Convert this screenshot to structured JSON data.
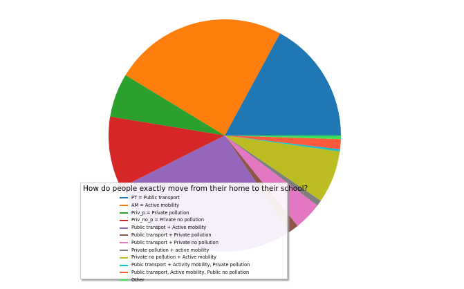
{
  "chart_data": {
    "type": "pie",
    "title": "",
    "legend_position": "bottom-left",
    "legend_title": "How do people exactly move from their home to their school?",
    "slices": [
      {
        "label": "PT = Public transport",
        "value": 17.1,
        "color": "#1f77b4"
      },
      {
        "label": "AM = Active mobility",
        "value": 24.2,
        "color": "#ff7f0e"
      },
      {
        "label": "Priv_p = Private pollution",
        "value": 6.1,
        "color": "#2ca02c"
      },
      {
        "label": "Priv_no_p = Private no pollution",
        "value": 10.0,
        "color": "#d62728"
      },
      {
        "label": "Public transpot + Active mobility",
        "value": 27.0,
        "color": "#9467bd"
      },
      {
        "label": "Public transport + Private pollution",
        "value": 1.4,
        "color": "#8c564b"
      },
      {
        "label": "Public transport + Private no pollution",
        "value": 3.9,
        "color": "#e377c2"
      },
      {
        "label": "Private pollution + active mobility",
        "value": 0.8,
        "color": "#7f7f7f"
      },
      {
        "label": "Private no pollution + Active mobility",
        "value": 7.3,
        "color": "#bcbd22"
      },
      {
        "label": "Pubic transport + Activity mobility, Private pollution",
        "value": 0.3,
        "color": "#17becf"
      },
      {
        "label": "Public transport, Active mobility, Public no pollution",
        "value": 1.4,
        "color": "#ff5a3c"
      },
      {
        "label": "Other",
        "value": 0.5,
        "color": "#3ee05a"
      }
    ]
  }
}
